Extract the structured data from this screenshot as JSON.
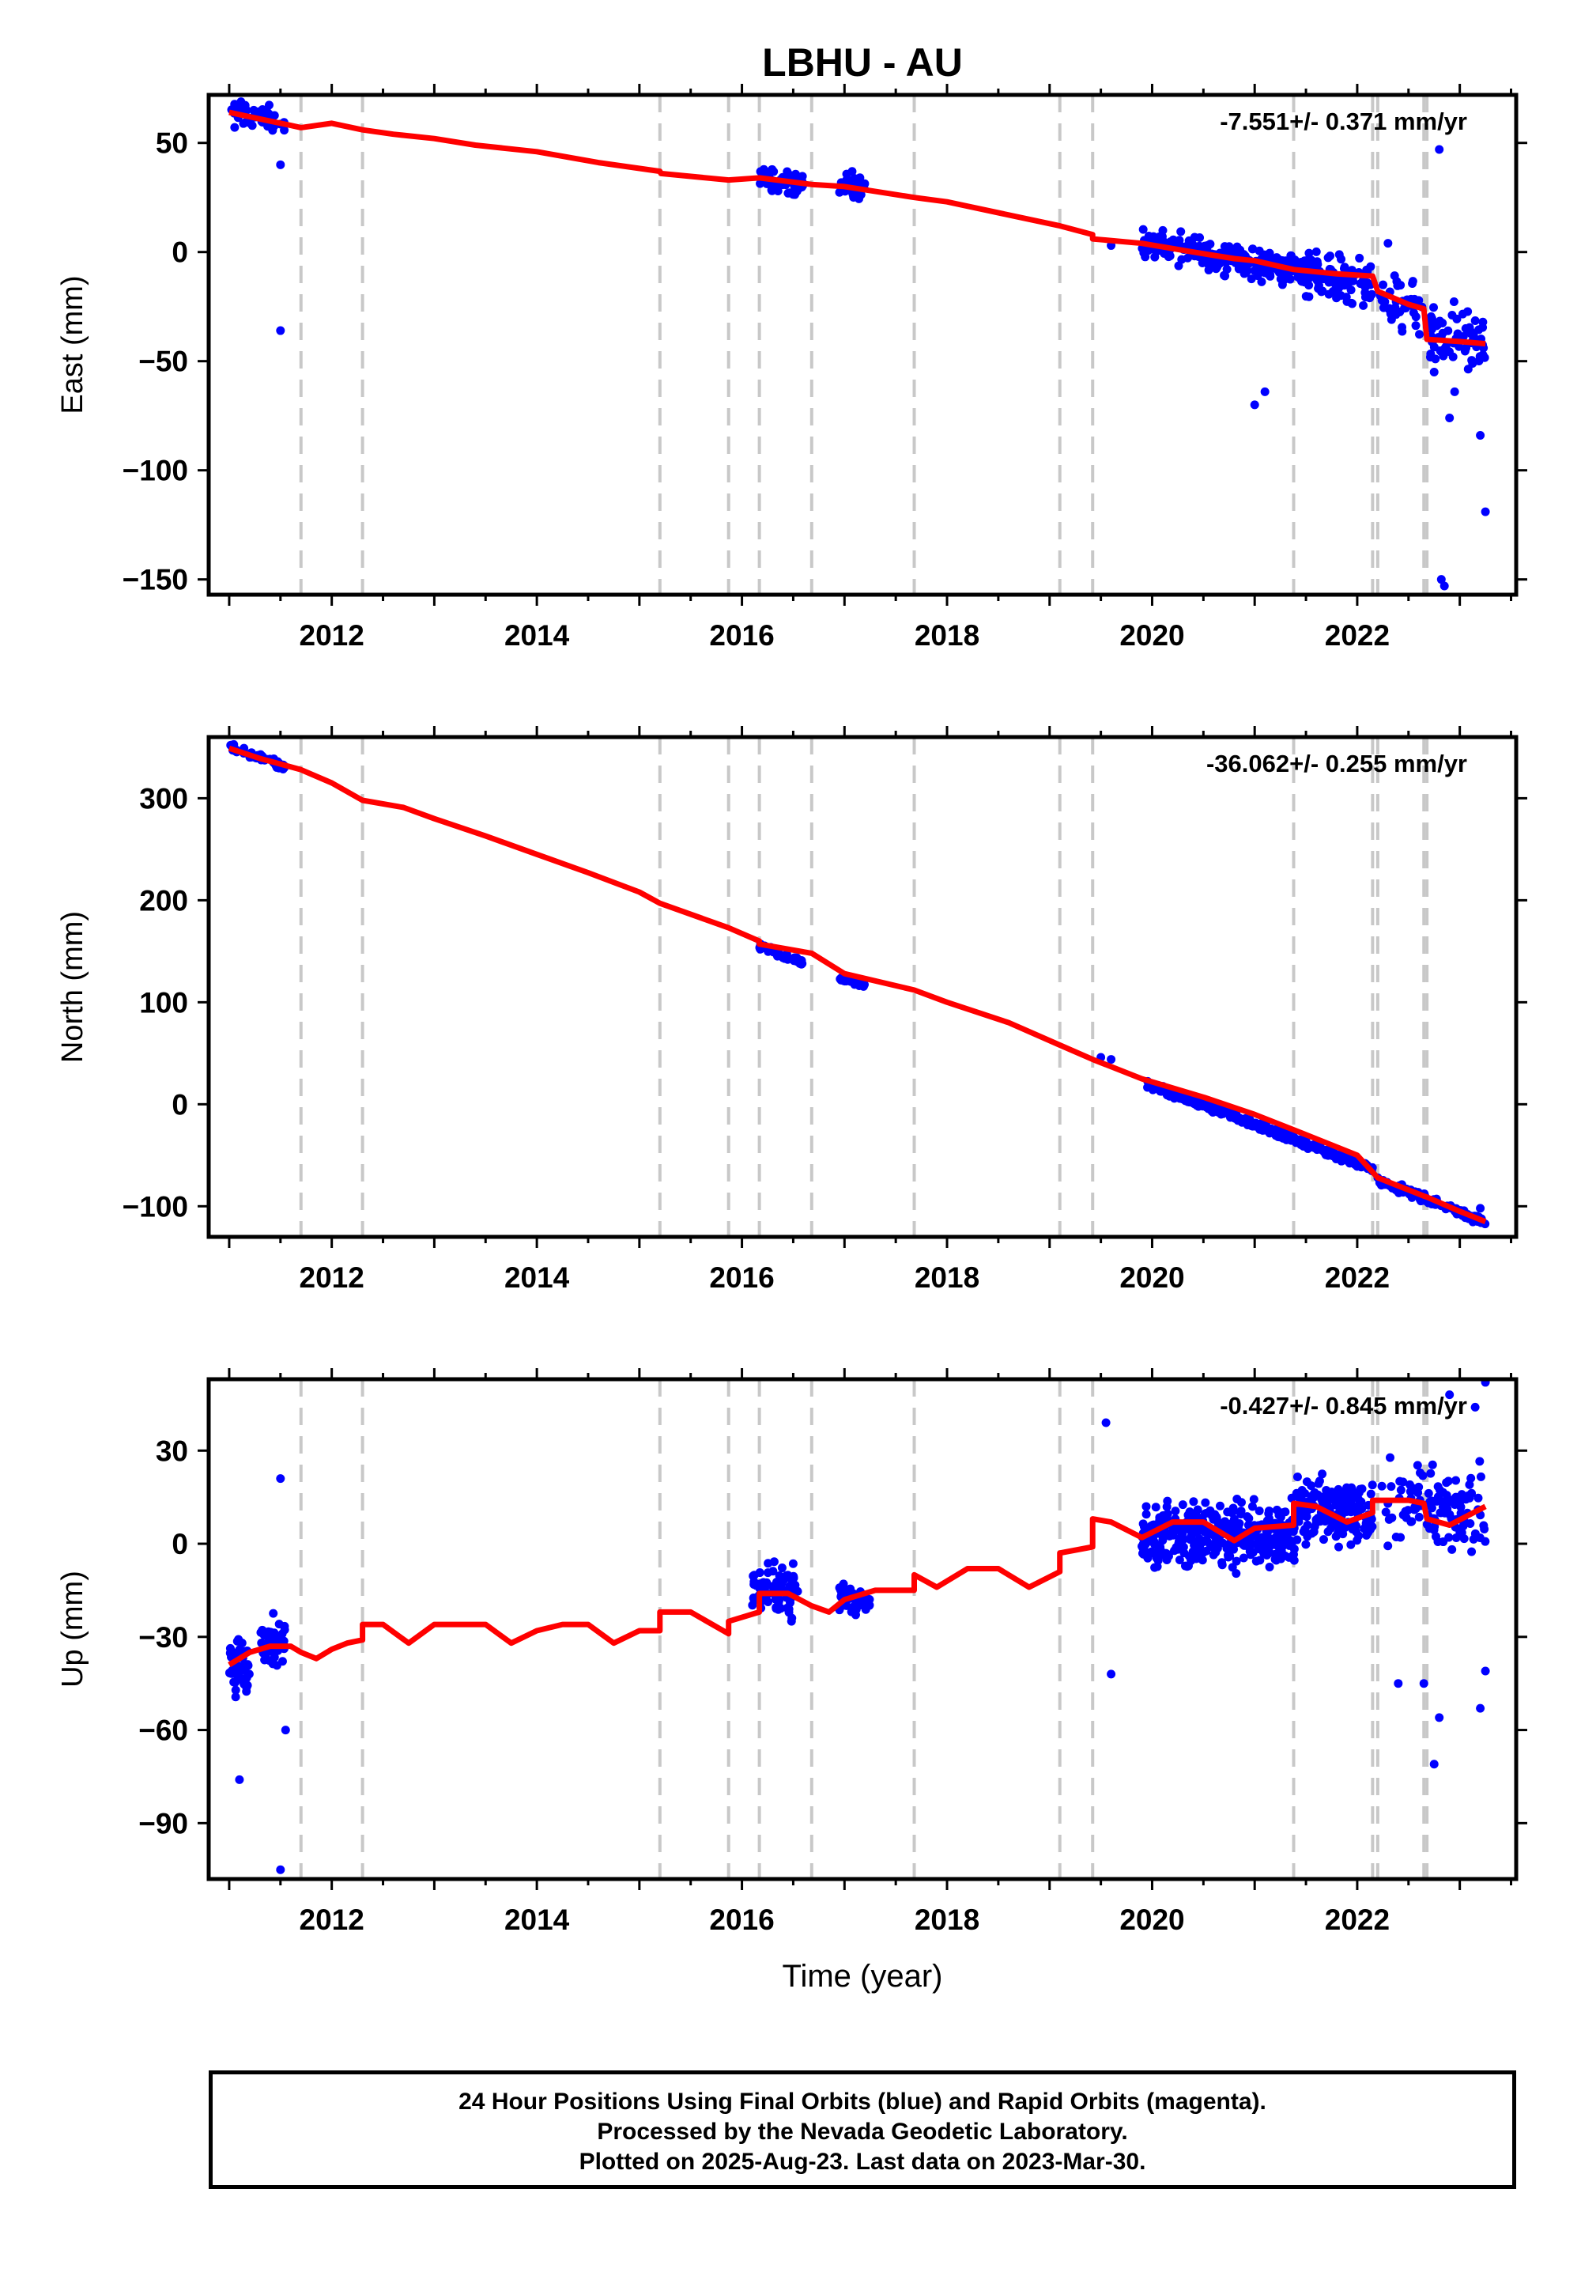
{
  "title": "LBHU - AU",
  "xlabel": "Time (year)",
  "footer": {
    "line1": "24 Hour Positions Using Final Orbits (blue) and Rapid Orbits (magenta).",
    "line2": "Processed by the Nevada Geodetic Laboratory.",
    "line3": "Plotted on 2025-Aug-23. Last data on 2023-Mar-30."
  },
  "colors": {
    "data": "#0000ff",
    "model": "#ff0000",
    "events": "#c8c8c8",
    "frame": "#000000"
  },
  "events": [
    2011.7,
    2012.3,
    2015.2,
    2015.87,
    2016.17,
    2016.68,
    2017.68,
    2019.1,
    2019.42,
    2021.38,
    2022.15,
    2022.2,
    2022.65,
    2022.68
  ],
  "chart_data": [
    {
      "type": "scatter",
      "name": "east",
      "ylabel": "East (mm)",
      "rate": "-7.551+/- 0.371 mm/yr",
      "xlim": [
        2010.8,
        2023.55
      ],
      "ylim": [
        -157,
        72
      ],
      "xticks": [
        2012,
        2014,
        2016,
        2018,
        2020,
        2022
      ],
      "yticks": [
        50,
        0,
        -50,
        -100,
        -150
      ],
      "yticklabels": [
        "50",
        "0",
        "−50",
        "−100",
        "−150"
      ],
      "model_x": [
        2011.0,
        2011.3,
        2011.6,
        2011.7,
        2012.0,
        2012.3,
        2012.6,
        2013.0,
        2013.4,
        2014.0,
        2014.6,
        2015.2,
        2015.21,
        2015.87,
        2016.17,
        2016.68,
        2017.0,
        2017.68,
        2018.0,
        2018.6,
        2019.1,
        2019.42,
        2019.42,
        2019.9,
        2020.4,
        2020.8,
        2021.0,
        2021.38,
        2021.8,
        2022.15,
        2022.2,
        2022.5,
        2022.65,
        2022.68,
        2023.0,
        2023.25
      ],
      "model_y": [
        64,
        61,
        58,
        57,
        59,
        56,
        54,
        52,
        49,
        46,
        41,
        37,
        36,
        33,
        34,
        31,
        30,
        25,
        23,
        17,
        12,
        8,
        6,
        4,
        0,
        -3,
        -4,
        -8,
        -10,
        -11,
        -18,
        -24,
        -26,
        -40,
        -41,
        -42
      ],
      "points": {
        "clusters": [
          {
            "x": [
              2011.0,
              2011.55
            ],
            "y0": 64,
            "slope": -8,
            "spread": 6,
            "n": 55
          },
          {
            "x": [
              2016.17,
              2016.6
            ],
            "y0": 34,
            "slope": -8,
            "spread": 5,
            "n": 60
          },
          {
            "x": [
              2016.95,
              2017.2
            ],
            "y0": 31,
            "slope": -8,
            "spread": 6,
            "n": 35
          },
          {
            "x": [
              2019.9,
              2021.4
            ],
            "y0": 5,
            "slope": -9,
            "spread": 7,
            "n": 230
          },
          {
            "x": [
              2021.4,
              2022.15
            ],
            "y0": -9,
            "slope": -8,
            "spread": 10,
            "n": 110
          },
          {
            "x": [
              2022.2,
              2022.65
            ],
            "y0": -22,
            "slope": -8,
            "spread": 12,
            "n": 40
          },
          {
            "x": [
              2022.68,
              2023.25
            ],
            "y0": -38,
            "slope": -8,
            "spread": 14,
            "n": 70
          }
        ],
        "outliers": [
          [
            2011.5,
            -36
          ],
          [
            2011.5,
            40
          ],
          [
            2019.6,
            3
          ],
          [
            2021.0,
            -70
          ],
          [
            2021.1,
            -64
          ],
          [
            2022.3,
            4
          ],
          [
            2022.8,
            47
          ],
          [
            2022.82,
            -150
          ],
          [
            2022.85,
            -153
          ],
          [
            2022.95,
            -64
          ],
          [
            2022.9,
            -76
          ],
          [
            2023.2,
            -84
          ],
          [
            2023.25,
            -119
          ],
          [
            2022.75,
            -55
          ]
        ]
      }
    },
    {
      "type": "scatter",
      "name": "north",
      "ylabel": "North (mm)",
      "rate": "-36.062+/- 0.255 mm/yr",
      "xlim": [
        2010.8,
        2023.55
      ],
      "ylim": [
        -130,
        360
      ],
      "xticks": [
        2012,
        2014,
        2016,
        2018,
        2020,
        2022
      ],
      "yticks": [
        300,
        200,
        100,
        0,
        -100
      ],
      "yticklabels": [
        "300",
        "200",
        "100",
        "0",
        "−100"
      ],
      "model_x": [
        2011.0,
        2011.3,
        2011.7,
        2012.0,
        2012.3,
        2012.7,
        2013.0,
        2013.5,
        2014.0,
        2014.5,
        2015.0,
        2015.2,
        2015.87,
        2016.17,
        2016.17,
        2016.68,
        2017.0,
        2017.68,
        2018.0,
        2018.6,
        2019.1,
        2019.42,
        2019.9,
        2020.5,
        2021.0,
        2021.38,
        2022.0,
        2022.2,
        2022.65,
        2022.68,
        2023.0,
        2023.25
      ],
      "model_y": [
        349,
        339,
        328,
        315,
        298,
        291,
        280,
        263,
        245,
        227,
        208,
        197,
        173,
        160,
        157,
        148,
        128,
        112,
        100,
        80,
        58,
        44,
        25,
        7,
        -10,
        -25,
        -50,
        -72,
        -90,
        -91,
        -105,
        -115
      ],
      "points": {
        "clusters": [
          {
            "x": [
              2011.0,
              2011.55
            ],
            "y0": 350,
            "slope": -36,
            "spread": 4,
            "n": 55
          },
          {
            "x": [
              2016.17,
              2016.6
            ],
            "y0": 154,
            "slope": -36,
            "spread": 4,
            "n": 55
          },
          {
            "x": [
              2016.95,
              2017.2
            ],
            "y0": 125,
            "slope": -36,
            "spread": 4,
            "n": 30
          },
          {
            "x": [
              2019.95,
              2022.15
            ],
            "y0": 20,
            "slope": -38,
            "spread": 4,
            "n": 320
          },
          {
            "x": [
              2022.2,
              2023.25
            ],
            "y0": -75,
            "slope": -38,
            "spread": 5,
            "n": 110
          }
        ],
        "outliers": [
          [
            2019.5,
            46
          ],
          [
            2019.6,
            44
          ],
          [
            2023.2,
            -102
          ]
        ]
      }
    },
    {
      "type": "scatter",
      "name": "up",
      "ylabel": "Up (mm)",
      "rate": "-0.427+/- 0.845 mm/yr",
      "xlim": [
        2010.8,
        2023.55
      ],
      "ylim": [
        -108,
        53
      ],
      "xticks": [
        2012,
        2014,
        2016,
        2018,
        2020,
        2022
      ],
      "yticks": [
        30,
        0,
        -30,
        -60,
        -90
      ],
      "yticklabels": [
        "30",
        "0",
        "−30",
        "−60",
        "−90"
      ],
      "model_x": [
        2011.0,
        2011.2,
        2011.4,
        2011.6,
        2011.7,
        2011.85,
        2012.0,
        2012.15,
        2012.3,
        2012.3,
        2012.5,
        2012.75,
        2013.0,
        2013.25,
        2013.5,
        2013.75,
        2014.0,
        2014.25,
        2014.5,
        2014.75,
        2015.0,
        2015.2,
        2015.2,
        2015.5,
        2015.87,
        2015.87,
        2016.17,
        2016.17,
        2016.45,
        2016.68,
        2016.85,
        2017.0,
        2017.3,
        2017.68,
        2017.68,
        2017.9,
        2018.2,
        2018.5,
        2018.8,
        2019.1,
        2019.1,
        2019.42,
        2019.42,
        2019.6,
        2019.9,
        2020.2,
        2020.5,
        2020.8,
        2021.0,
        2021.38,
        2021.38,
        2021.6,
        2021.9,
        2022.15,
        2022.15,
        2022.5,
        2022.65,
        2022.68,
        2022.9,
        2023.25
      ],
      "model_y": [
        -39,
        -35,
        -33,
        -33,
        -35,
        -37,
        -34,
        -32,
        -31,
        -26,
        -26,
        -32,
        -26,
        -26,
        -26,
        -32,
        -28,
        -26,
        -26,
        -32,
        -28,
        -28,
        -22,
        -22,
        -29,
        -25,
        -22,
        -16,
        -16,
        -20,
        -22,
        -18,
        -15,
        -15,
        -10,
        -14,
        -8,
        -8,
        -14,
        -9,
        -3,
        -1,
        8,
        7,
        2,
        7,
        7,
        1,
        5,
        6,
        13,
        12,
        7,
        10,
        14,
        14,
        13,
        8,
        6,
        12
      ],
      "points": {
        "clusters": [
          {
            "x": [
              2011.0,
              2011.2
            ],
            "y0": -40,
            "slope": 0,
            "spread": 10,
            "n": 45
          },
          {
            "x": [
              2011.3,
              2011.55
            ],
            "y0": -32,
            "slope": 0,
            "spread": 9,
            "n": 45
          },
          {
            "x": [
              2016.1,
              2016.55
            ],
            "y0": -15,
            "slope": 0,
            "spread": 8,
            "n": 80
          },
          {
            "x": [
              2016.95,
              2017.25
            ],
            "y0": -18,
            "slope": 0,
            "spread": 7,
            "n": 40
          },
          {
            "x": [
              2019.9,
              2021.4
            ],
            "y0": 3,
            "slope": 0,
            "spread": 10,
            "n": 380
          },
          {
            "x": [
              2021.4,
              2022.15
            ],
            "y0": 10,
            "slope": 0,
            "spread": 10,
            "n": 160
          },
          {
            "x": [
              2022.2,
              2022.65
            ],
            "y0": 14,
            "slope": 0,
            "spread": 13,
            "n": 35
          },
          {
            "x": [
              2022.68,
              2023.25
            ],
            "y0": 10,
            "slope": 0,
            "spread": 14,
            "n": 80
          }
        ],
        "outliers": [
          [
            2011.5,
            21
          ],
          [
            2011.5,
            -105
          ],
          [
            2011.1,
            -76
          ],
          [
            2011.55,
            -60
          ],
          [
            2019.55,
            39
          ],
          [
            2019.6,
            -42
          ],
          [
            2022.4,
            -45
          ],
          [
            2022.65,
            -45
          ],
          [
            2022.75,
            -71
          ],
          [
            2022.8,
            -56
          ],
          [
            2023.2,
            -53
          ],
          [
            2023.25,
            -41
          ],
          [
            2022.9,
            48
          ],
          [
            2023.25,
            52
          ],
          [
            2023.15,
            44
          ]
        ]
      }
    }
  ]
}
